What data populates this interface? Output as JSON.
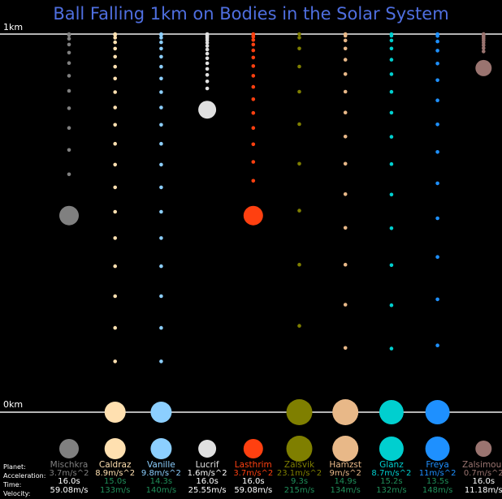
{
  "title": "Ball Falling 1km on Bodies in the Solar System",
  "axis": {
    "top_label": "1km",
    "bottom_label": "0km"
  },
  "row_labels": {
    "planet": "Planet:",
    "acceleration": "Acceleration:",
    "time": "Time:",
    "velocity": "Velocity:"
  },
  "colors": {
    "background": "#000000",
    "title": "#4f6fe0",
    "ground_line": "#b4b4b4",
    "time_text": "#1f8f5a",
    "white_text": "#ffffff"
  },
  "chart_data": {
    "type": "scatter",
    "title": "Ball Falling 1km on Bodies in the Solar System",
    "ylabel": "",
    "ylim": [
      0,
      1
    ],
    "y_unit": "km",
    "series": [
      {
        "name": "Mischkra",
        "color": "#808080",
        "acceleration": "3.7m/s^2",
        "time": "16.0s",
        "velocity": "59.08m/s",
        "g": 3.7,
        "ball_height_km": 0.52,
        "ball_radius": 12,
        "trail_dots": 12,
        "detail_color": "#808080",
        "time_color": "#ffffff",
        "velocity_color": "#ffffff"
      },
      {
        "name": "Caldraz",
        "color": "#ffe0b0",
        "acceleration": "8.9m/s^2",
        "time": "15.0s",
        "velocity": "133m/s",
        "g": 8.9,
        "ball_height_km": 0.0,
        "ball_radius": 13,
        "trail_dots": 20,
        "detail_color": "#ffe0b0",
        "time_color": "#1f8f5a",
        "velocity_color": "#1f8f5a"
      },
      {
        "name": "Vanille",
        "color": "#8ccfff",
        "acceleration": "9.8m/s^2",
        "time": "14.3s",
        "velocity": "140m/s",
        "g": 9.8,
        "ball_height_km": 0.0,
        "ball_radius": 13,
        "trail_dots": 20,
        "detail_color": "#8ccfff",
        "time_color": "#1f8f5a",
        "velocity_color": "#1f8f5a"
      },
      {
        "name": "Lucrif",
        "color": "#e0e0e0",
        "acceleration": "1.6m/s^2",
        "time": "16.0s",
        "velocity": "25.55m/s",
        "g": 1.6,
        "ball_height_km": 0.8,
        "ball_radius": 11,
        "trail_dots": 16,
        "detail_color": "#ffffff",
        "time_color": "#ffffff",
        "velocity_color": "#ffffff"
      },
      {
        "name": "Lasthrim",
        "color": "#ff4010",
        "acceleration": "3.7m/s^2",
        "time": "16.0s",
        "velocity": "59.08m/s",
        "g": 3.7,
        "ball_height_km": 0.52,
        "ball_radius": 12,
        "trail_dots": 16,
        "detail_color": "#ff4010",
        "time_color": "#ffffff",
        "velocity_color": "#ffffff"
      },
      {
        "name": "Zalsvik",
        "color": "#7f7f00",
        "acceleration": "23.1m/s^2",
        "time": "9.3s",
        "velocity": "215m/s",
        "g": 23.1,
        "ball_height_km": 0.0,
        "ball_radius": 16,
        "trail_dots": 10,
        "detail_color": "#7f7f00",
        "time_color": "#1f8f5a",
        "velocity_color": "#1f8f5a"
      },
      {
        "name": "Hamzst",
        "color": "#e8b888",
        "acceleration": "9m/s^2",
        "time": "14.9s",
        "velocity": "134m/s",
        "g": 9.0,
        "ball_height_km": 0.0,
        "ball_radius": 16,
        "trail_dots": 15,
        "detail_color": "#e8b888",
        "time_color": "#1f8f5a",
        "velocity_color": "#1f8f5a"
      },
      {
        "name": "Glanz",
        "color": "#00cfcf",
        "acceleration": "8.7m/s^2",
        "time": "15.2s",
        "velocity": "132m/s",
        "g": 8.7,
        "ball_height_km": 0.0,
        "ball_radius": 15,
        "trail_dots": 15,
        "detail_color": "#00cfcf",
        "time_color": "#1f8f5a",
        "velocity_color": "#1f8f5a"
      },
      {
        "name": "Freya",
        "color": "#1e90ff",
        "acceleration": "11m/s^2",
        "time": "13.5s",
        "velocity": "148m/s",
        "g": 11.0,
        "ball_height_km": 0.0,
        "ball_radius": 15,
        "trail_dots": 14,
        "detail_color": "#1e90ff",
        "time_color": "#1f8f5a",
        "velocity_color": "#1f8f5a"
      },
      {
        "name": "Zalsimour",
        "color": "#9a7470",
        "acceleration": "0.7m/s^2",
        "time": "16.0s",
        "velocity": "11.18m/s",
        "g": 0.7,
        "ball_height_km": 0.91,
        "ball_radius": 10,
        "trail_dots": 11,
        "detail_color": "#9a7470",
        "time_color": "#ffffff",
        "velocity_color": "#ffffff"
      }
    ]
  }
}
